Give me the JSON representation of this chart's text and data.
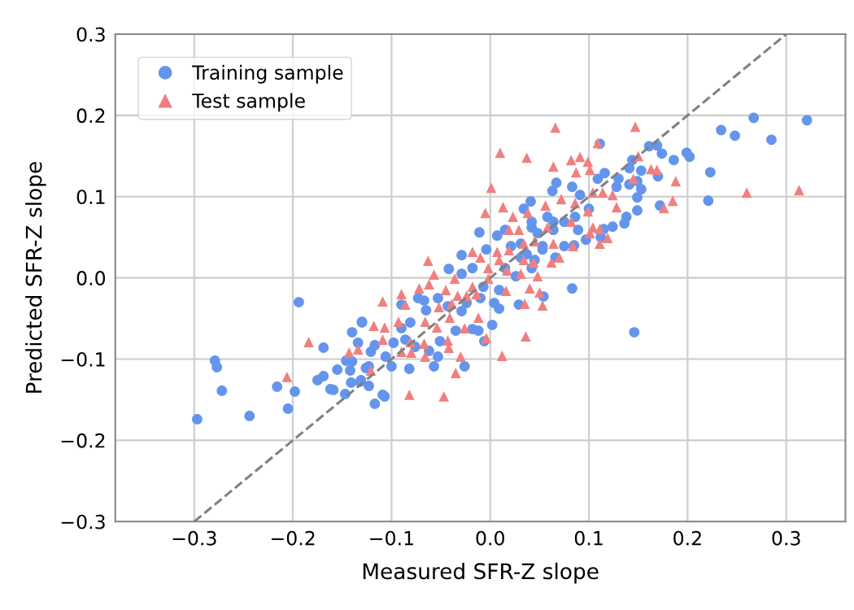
{
  "chart_data": {
    "type": "scatter",
    "xlabel": "Measured SFR-Z slope",
    "ylabel": "Predicted SFR-Z slope",
    "xlim": [
      -0.38,
      0.36
    ],
    "ylim": [
      -0.3,
      0.3
    ],
    "xticks": [
      {
        "value": -0.3,
        "label": "−0.3"
      },
      {
        "value": -0.2,
        "label": "−0.2"
      },
      {
        "value": -0.1,
        "label": "−0.1"
      },
      {
        "value": 0,
        "label": "0.0"
      },
      0.1,
      0.2,
      0.3
    ],
    "yticks": [
      {
        "value": -0.3,
        "label": "−0.3"
      },
      {
        "value": -0.2,
        "label": "−0.2"
      },
      {
        "value": -0.1,
        "label": "−0.1"
      },
      {
        "value": 0,
        "label": "0.0"
      },
      0.1,
      0.2,
      0.3
    ],
    "grid": true,
    "legend": "top left",
    "series": [
      {
        "name": "Training sample",
        "marker": "circle",
        "color": "#6495ed",
        "x": [
          -0.194,
          -0.13,
          -0.14,
          -0.169,
          -0.134,
          -0.121,
          -0.279,
          -0.277,
          -0.272,
          -0.297,
          -0.244,
          -0.216,
          -0.198,
          -0.205,
          -0.175,
          -0.169,
          -0.155,
          -0.162,
          -0.159,
          -0.147,
          -0.117,
          -0.141,
          -0.132,
          -0.123,
          -0.146,
          -0.14,
          -0.142,
          -0.126,
          -0.011,
          -0.029,
          -0.042,
          -0.09,
          -0.13,
          -0.123,
          -0.1,
          -0.082,
          -0.057,
          -0.026,
          -0.053,
          -0.006,
          0.002,
          0.009,
          0.029,
          0.054,
          -0.012,
          -0.018,
          -0.035,
          -0.051,
          -0.062,
          -0.076,
          -0.086,
          -0.098,
          -0.117,
          -0.106,
          -0.131,
          -0.081,
          -0.067,
          -0.053,
          -0.043,
          -0.029,
          -0.024,
          -0.01,
          0.004,
          0.009,
          -0.007,
          -0.029,
          -0.018,
          0.015,
          0.026,
          0.042,
          0.031,
          0.021,
          0.031,
          0.042,
          0.053,
          0.064,
          0.058,
          0.041,
          0.067,
          0.063,
          0.007,
          0.015,
          -0.004,
          -0.073,
          -0.065,
          -0.09,
          0.234,
          0.223,
          0.221,
          0.199,
          0.202,
          0.186,
          0.161,
          0.169,
          0.174,
          0.17,
          0.172,
          0.111,
          0.144,
          0.141,
          0.153,
          0.149,
          0.153,
          0.141,
          0.13,
          0.116,
          0.109,
          0.128,
          0.149,
          0.149,
          0.138,
          0.136,
          0.124,
          0.115,
          0.112,
          0.097,
          0.083,
          0.091,
          0.083,
          0.1,
          0.086,
          0.075,
          0.089,
          0.064,
          0.075,
          0.085,
          0.066,
          0.053,
          0.048,
          0.042,
          0.034,
          0.045,
          0.037,
          0.248,
          0.267,
          0.285,
          0.321,
          0.146,
          -0.109,
          -0.107
        ],
        "values": [
          -0.03,
          -0.055,
          -0.067,
          -0.086,
          -0.08,
          -0.091,
          -0.102,
          -0.11,
          -0.139,
          -0.174,
          -0.17,
          -0.134,
          -0.14,
          -0.161,
          -0.126,
          -0.121,
          -0.113,
          -0.137,
          -0.138,
          -0.143,
          -0.155,
          -0.129,
          -0.128,
          -0.133,
          -0.102,
          -0.103,
          -0.114,
          -0.111,
          0.056,
          0.028,
          0.011,
          -0.033,
          -0.054,
          -0.109,
          -0.109,
          -0.112,
          -0.109,
          -0.109,
          -0.097,
          -0.078,
          -0.058,
          -0.038,
          -0.033,
          -0.023,
          -0.065,
          -0.063,
          -0.065,
          -0.078,
          -0.09,
          -0.085,
          -0.076,
          -0.08,
          -0.083,
          -0.097,
          -0.126,
          -0.055,
          -0.028,
          -0.025,
          -0.035,
          -0.041,
          -0.031,
          -0.025,
          -0.031,
          -0.015,
          -0.011,
          0.005,
          0.012,
          0.012,
          0.002,
          0.012,
          0.025,
          0.039,
          0.042,
          0.062,
          0.039,
          0.059,
          0.075,
          0.094,
          0.117,
          0.107,
          0.052,
          0.059,
          0.035,
          -0.025,
          -0.04,
          -0.062,
          0.182,
          0.13,
          0.095,
          0.154,
          0.149,
          0.145,
          0.162,
          0.163,
          0.153,
          0.125,
          0.089,
          0.165,
          0.145,
          0.135,
          0.132,
          0.119,
          0.109,
          0.115,
          0.122,
          0.129,
          0.122,
          0.112,
          0.099,
          0.083,
          0.075,
          0.067,
          0.063,
          0.06,
          0.05,
          0.047,
          0.112,
          0.102,
          -0.013,
          0.085,
          0.075,
          0.069,
          0.059,
          0.069,
          0.039,
          0.04,
          0.025,
          0.035,
          0.055,
          0.069,
          0.085,
          0.022,
          0.029,
          0.175,
          0.197,
          0.17,
          0.194,
          -0.067,
          -0.144,
          -0.146
        ]
      },
      {
        "name": "Test sample",
        "marker": "triangle",
        "color": "#f08080",
        "x": [
          -0.206,
          -0.184,
          -0.143,
          -0.134,
          -0.118,
          -0.121,
          -0.109,
          0.001,
          0.013,
          -0.005,
          -0.063,
          -0.09,
          -0.072,
          -0.062,
          -0.057,
          -0.107,
          -0.093,
          -0.086,
          -0.066,
          -0.109,
          -0.081,
          -0.067,
          -0.09,
          -0.08,
          -0.066,
          -0.03,
          -0.035,
          0.012,
          0.036,
          -0.004,
          -0.042,
          -0.043,
          -0.054,
          -0.026,
          -0.012,
          -0.041,
          -0.052,
          -0.039,
          -0.033,
          -0.024,
          -0.014,
          -0.045,
          -0.036,
          -0.018,
          -0.002,
          0.016,
          0.04,
          0.053,
          0.035,
          0.05,
          -0.018,
          -0.01,
          0.007,
          0.019,
          -0.002,
          0.009,
          0.017,
          0.031,
          0.034,
          0.044,
          0.029,
          0.023,
          0.038,
          0.056,
          0.058,
          0.064,
          0.045,
          0.034,
          0.07,
          0.019,
          0.066,
          0.147,
          0.037,
          0.064,
          0.082,
          0.091,
          0.099,
          0.087,
          0.101,
          0.109,
          0.15,
          0.163,
          0.169,
          0.145,
          0.188,
          0.185,
          0.176,
          0.104,
          0.114,
          0.124,
          0.128,
          0.072,
          0.086,
          0.099,
          0.104,
          0.111,
          0.101,
          0.119,
          0.111,
          0.084,
          0.062,
          0.082,
          0.048,
          0.26,
          0.313,
          -0.047,
          -0.082,
          0.01
        ],
        "values": [
          -0.122,
          -0.079,
          -0.092,
          -0.088,
          -0.059,
          -0.114,
          -0.029,
          0.111,
          0.087,
          0.08,
          0.021,
          -0.02,
          -0.013,
          -0.008,
          0.004,
          -0.061,
          -0.054,
          -0.033,
          -0.054,
          -0.076,
          -0.079,
          -0.081,
          -0.091,
          -0.092,
          -0.097,
          -0.097,
          -0.117,
          -0.096,
          -0.072,
          -0.074,
          -0.086,
          -0.077,
          -0.061,
          -0.062,
          -0.049,
          -0.049,
          -0.036,
          -0.032,
          -0.022,
          -0.022,
          -0.02,
          -0.015,
          -0.001,
          -0.011,
          -0.001,
          -0.016,
          -0.013,
          -0.034,
          -0.032,
          -0.018,
          0.032,
          0.025,
          0.032,
          0.034,
          0.012,
          0.022,
          0.009,
          0.005,
          0.022,
          0.019,
          0.059,
          0.075,
          0.08,
          0.089,
          0.062,
          0.042,
          0.045,
          0.042,
          0.025,
          0.059,
          0.185,
          0.186,
          0.148,
          0.137,
          0.145,
          0.149,
          0.143,
          0.13,
          0.133,
          0.166,
          0.15,
          0.134,
          0.133,
          0.122,
          0.119,
          0.095,
          0.086,
          0.105,
          0.105,
          0.102,
          0.087,
          0.097,
          0.092,
          0.082,
          0.062,
          0.06,
          0.055,
          0.049,
          0.042,
          0.039,
          0.019,
          0.069,
          0.002,
          0.105,
          0.108,
          -0.146,
          -0.144,
          0.154
        ]
      },
      {
        "type": "line",
        "marker": "none",
        "line_style": "dashed",
        "color": "#808080",
        "x": [
          -0.3,
          0.3
        ],
        "values": [
          -0.3,
          0.3
        ]
      }
    ]
  }
}
